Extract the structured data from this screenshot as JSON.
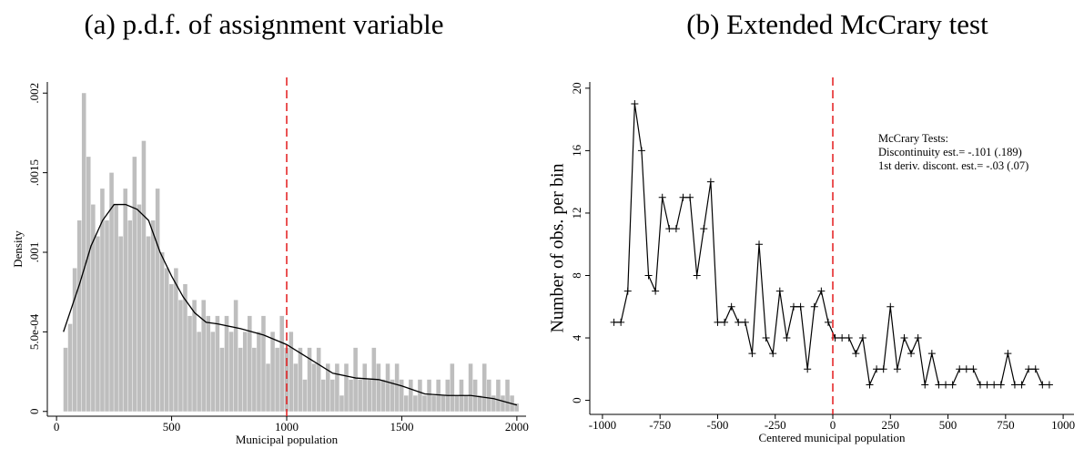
{
  "chart_data": [
    {
      "type": "histogram",
      "title": "(a) p.d.f. of assignment variable",
      "x_label": "Municipal population",
      "y_label": "Density",
      "bins": [
        30,
        50,
        70,
        90,
        110,
        130,
        150,
        170,
        190,
        210,
        230,
        250,
        270,
        290,
        310,
        330,
        350,
        370,
        390,
        410,
        430,
        450,
        470,
        490,
        510,
        530,
        550,
        570,
        590,
        610,
        630,
        650,
        670,
        690,
        710,
        730,
        750,
        770,
        790,
        810,
        830,
        850,
        870,
        890,
        910,
        930,
        950,
        970,
        990,
        1010,
        1030,
        1050,
        1070,
        1090,
        1110,
        1130,
        1150,
        1170,
        1190,
        1210,
        1230,
        1250,
        1270,
        1290,
        1310,
        1330,
        1350,
        1370,
        1390,
        1410,
        1430,
        1450,
        1470,
        1490,
        1510,
        1530,
        1550,
        1570,
        1590,
        1610,
        1630,
        1650,
        1670,
        1690,
        1710,
        1730,
        1750,
        1770,
        1790,
        1810,
        1830,
        1850,
        1870,
        1890,
        1910,
        1930,
        1950,
        1970,
        1990,
        2010
      ],
      "values": [
        0.0004,
        0.00055,
        0.0009,
        0.0012,
        0.002,
        0.0016,
        0.0013,
        0.0011,
        0.0014,
        0.0012,
        0.0015,
        0.0013,
        0.0011,
        0.0014,
        0.0012,
        0.0016,
        0.0013,
        0.0017,
        0.0011,
        0.0012,
        0.0014,
        0.001,
        0.0009,
        0.0008,
        0.0009,
        0.0007,
        0.0008,
        0.0006,
        0.0007,
        0.0005,
        0.0007,
        0.0006,
        0.0005,
        0.0006,
        0.0004,
        0.0006,
        0.0005,
        0.0007,
        0.0004,
        0.0005,
        0.0006,
        0.0004,
        0.0005,
        0.0006,
        0.0003,
        0.0005,
        0.0004,
        0.0006,
        0.0004,
        0.0005,
        0.0003,
        0.0004,
        0.0002,
        0.0004,
        0.0003,
        0.0004,
        0.0002,
        0.0003,
        0.0002,
        0.0003,
        0.0001,
        0.0003,
        0.0002,
        0.0004,
        0.0002,
        0.0003,
        0.0002,
        0.0004,
        0.0003,
        0.0002,
        0.0003,
        0.0002,
        0.0003,
        0.0002,
        0.0001,
        0.0002,
        0.0001,
        0.0002,
        0.0001,
        0.0002,
        0.0001,
        0.0002,
        0.0001,
        0.0002,
        0.0003,
        0.0001,
        0.0002,
        0.0001,
        0.0003,
        0.0002,
        0.0001,
        0.0003,
        0.0002,
        0.0001,
        0.0002,
        0.0001,
        0.0002,
        0.0001,
        5e-05
      ],
      "color": "#bebebe",
      "kde": {
        "x": [
          30,
          100,
          150,
          200,
          250,
          300,
          350,
          400,
          450,
          500,
          550,
          600,
          650,
          700,
          800,
          900,
          1000,
          1100,
          1200,
          1300,
          1400,
          1500,
          1600,
          1700,
          1800,
          1900,
          2000
        ],
        "values": [
          0.0005,
          0.0008,
          0.00104,
          0.0012,
          0.0013,
          0.0013,
          0.00127,
          0.0012,
          0.001,
          0.00085,
          0.00072,
          0.00062,
          0.00056,
          0.00055,
          0.00052,
          0.00048,
          0.00042,
          0.00033,
          0.00024,
          0.00021,
          0.0002,
          0.00016,
          0.00011,
          0.0001,
          0.0001,
          8e-05,
          4e-05
        ],
        "color": "#000000"
      },
      "vlines": [
        1000
      ],
      "vline_color": "#e41a1c",
      "xlim": [
        -40,
        2040
      ],
      "xticks": [
        0,
        500,
        1000,
        1500,
        2000
      ],
      "ylim": [
        -3e-05,
        0.00207
      ],
      "yticks": [
        0,
        {
          "value": 0.0005,
          "label": "5.0e-04"
        },
        {
          "value": 0.001,
          "label": ".001"
        },
        {
          "value": 0.0015,
          "label": ".0015"
        },
        {
          "value": 0.002,
          "label": ".002"
        }
      ]
    },
    {
      "type": "line",
      "title": "(b) Extended McCrary test",
      "x_label": "Centered municipal population",
      "y_label": "Number of obs. per bin",
      "x": [
        -950,
        -920,
        -890,
        -860,
        -830,
        -800,
        -770,
        -740,
        -710,
        -680,
        -650,
        -620,
        -590,
        -560,
        -530,
        -500,
        -470,
        -440,
        -410,
        -380,
        -350,
        -320,
        -290,
        -260,
        -230,
        -200,
        -170,
        -140,
        -110,
        -80,
        -50,
        -20,
        10,
        40,
        70,
        100,
        130,
        160,
        190,
        220,
        250,
        280,
        310,
        340,
        370,
        400,
        430,
        460,
        490,
        520,
        550,
        580,
        610,
        640,
        670,
        700,
        730,
        760,
        790,
        820,
        850,
        880,
        910,
        940
      ],
      "values": [
        5,
        5,
        7,
        19,
        16,
        8,
        7,
        13,
        11,
        11,
        13,
        13,
        8,
        11,
        14,
        5,
        5,
        6,
        5,
        5,
        3,
        10,
        4,
        3,
        7,
        4,
        6,
        6,
        2,
        6,
        7,
        5,
        4,
        4,
        4,
        3,
        4,
        1,
        2,
        2,
        6,
        2,
        4,
        3,
        4,
        1,
        3,
        1,
        1,
        1,
        2,
        2,
        2,
        1,
        1,
        1,
        1,
        3,
        1,
        1,
        2,
        2,
        1,
        1
      ],
      "color": "#000000",
      "marker": "+",
      "vlines": [
        0
      ],
      "vline_color": "#e41a1c",
      "annotations": [
        "McCrary Tests:",
        "Discontinuity est.= -.101 (.189)",
        "1st deriv. discont. est.= -.03 (.07)"
      ],
      "xlim": [
        -1055,
        1047
      ],
      "xticks": [
        -1000,
        -750,
        -500,
        -250,
        0,
        250,
        500,
        750,
        1000
      ],
      "ylim": [
        -0.9,
        20.4
      ],
      "yticks": [
        0,
        4,
        8,
        12,
        16,
        20
      ]
    }
  ]
}
